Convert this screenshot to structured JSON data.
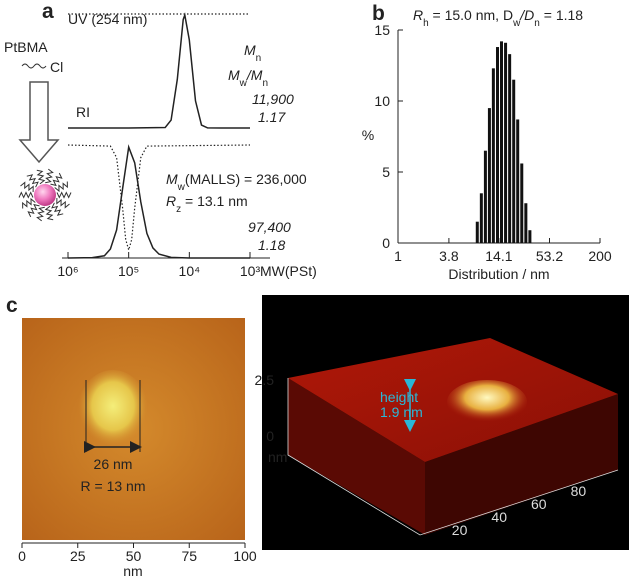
{
  "chart_data": [
    {
      "type": "line",
      "label": "a",
      "x_scale": "log",
      "xlim": [
        1000000,
        1000
      ],
      "xticks": [
        {
          "value": 1000000,
          "label": "10⁶"
        },
        {
          "value": 100000,
          "label": "10⁵"
        },
        {
          "value": 10000,
          "label": "10⁴"
        },
        {
          "value": 1000,
          "label": "10³"
        }
      ],
      "x_label": "MW(PSt)",
      "scheme": [
        "PtBMA",
        "Cl"
      ],
      "panels": [
        {
          "series": [
            {
              "name": "UV (254 nm)",
              "style": "dotted",
              "x": [
                1000000,
                1000
              ],
              "values": [
                0,
                0
              ]
            },
            {
              "name": "RI",
              "style": "solid",
              "x": [
                1000000,
                100000,
                25000,
                20000,
                15800,
                12600,
                11900,
                10000,
                7900,
                6300,
                5000,
                3000,
                1000
              ],
              "values": [
                0,
                0,
                0.004,
                0.07,
                0.43,
                0.96,
                1,
                0.78,
                0.24,
                0.026,
                0.001,
                0,
                0
              ]
            }
          ],
          "annotations": [
            [
              "M",
              "n"
            ],
            [
              "M",
              "w",
              "/M",
              "n"
            ],
            [
              "11,900"
            ],
            [
              "1.17"
            ]
          ]
        },
        {
          "series": [
            {
              "style": "dotted",
              "x": [
                1000000,
                200000,
                158000,
                126000,
                112000,
                100000,
                89100,
                79400,
                63100,
                50100,
                1000
              ],
              "values": [
                0,
                0.01,
                0.12,
                0.6,
                0.9,
                1,
                0.9,
                0.6,
                0.12,
                0.01,
                0
              ]
            },
            {
              "style": "solid",
              "x": [
                1000000,
                398000,
                251000,
                200000,
                158000,
                126000,
                100000,
                79400,
                63100,
                50100,
                39800,
                31600,
                20000,
                10000,
                1000
              ],
              "values": [
                0,
                0.004,
                0.02,
                0.08,
                0.25,
                0.62,
                0.99,
                0.85,
                0.5,
                0.22,
                0.09,
                0.035,
                0.005,
                0,
                0
              ]
            }
          ],
          "annotations": [
            [
              "M",
              "w",
              "(MALLS) = 236,000"
            ],
            [
              "R",
              "z",
              " = 13.1 nm"
            ],
            [
              "97,400"
            ],
            [
              "1.18"
            ]
          ]
        }
      ]
    },
    {
      "type": "bar",
      "label": "b",
      "title": [
        "R",
        "h",
        " = 15.0 nm, D",
        "w",
        "/D",
        "n",
        " = 1.18"
      ],
      "x_scale": "log",
      "xlim": [
        1,
        200
      ],
      "xticks": [
        1,
        3.8,
        14.1,
        53.2,
        200
      ],
      "x_label": "Distribution / nm",
      "ylim": [
        0,
        15
      ],
      "yticks": [
        0,
        5,
        10,
        15
      ],
      "y_label": "%",
      "color": "#111",
      "x": [
        8,
        8.9,
        9.9,
        11,
        12.2,
        13.6,
        15.1,
        16.8,
        18.7,
        20.8,
        23.1,
        25.7,
        28.6,
        31.8
      ],
      "values": [
        1.5,
        3.5,
        6.5,
        9.5,
        12.3,
        13.8,
        14.2,
        14.1,
        13.3,
        11.5,
        8.7,
        5.6,
        2.8,
        0.9
      ]
    }
  ],
  "panel_c": {
    "label": "c",
    "left_image": {
      "scale_bar_label": "26 nm",
      "radius_label": "R = 13 nm",
      "xlim": [
        0,
        100
      ],
      "xticks": [
        0,
        25,
        50,
        75,
        100
      ],
      "x_label": "nm"
    },
    "right_image": {
      "zticks": [
        0,
        2.5
      ],
      "z_label": "nm",
      "height_label": [
        "height",
        "1.9 nm"
      ],
      "xlim": [
        0,
        100
      ],
      "xticks": [
        20,
        40,
        60,
        80
      ]
    }
  }
}
